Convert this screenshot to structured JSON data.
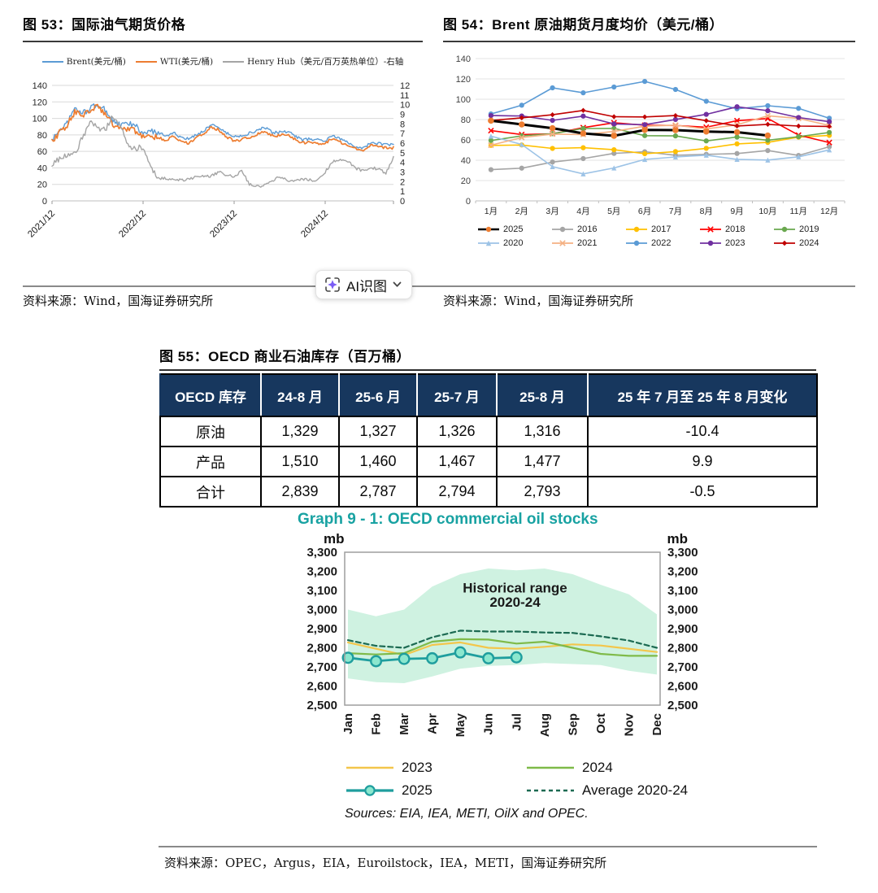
{
  "ai_button": {
    "label": "AI识图"
  },
  "sources": {
    "fig53": "资料来源：Wind，国海证券研究所",
    "fig54": "资料来源：Wind，国海证券研究所",
    "footer": "资料来源：OPEC，Argus，EIA，Euroilstock，IEA，METI，国海证券研究所"
  },
  "chart_data": [
    {
      "id": "intl-oil-gas-futures",
      "type": "line",
      "title": "图 53：国际油气期货价格",
      "x_tick_labels": [
        "2021/12",
        "2022/12",
        "2023/12",
        "2024/12"
      ],
      "x_tick_indices": [
        0,
        12,
        24,
        36
      ],
      "x_note": "monthly samples 2021/12 through 2025/09",
      "left_axis": {
        "min": 0,
        "max": 140,
        "step": 20
      },
      "right_axis": {
        "min": 0,
        "max": 12,
        "step": 1
      },
      "grid": true,
      "series": [
        {
          "name": "Brent(美元/桶)",
          "color": "#5B9BD5",
          "axis": "left",
          "width": 1.4,
          "volatility": 1.7,
          "values": [
            74,
            86,
            94,
            112,
            106,
            112,
            117,
            110,
            98,
            91,
            94,
            91,
            81,
            84,
            83,
            79,
            83,
            76,
            75,
            80,
            85,
            93,
            89,
            82,
            78,
            79,
            82,
            85,
            89,
            83,
            83,
            84,
            79,
            74,
            75,
            74,
            73,
            79,
            75,
            71,
            66,
            64,
            70,
            70,
            68,
            68
          ]
        },
        {
          "name": "WTI(美元/桶)",
          "color": "#ED7D31",
          "axis": "left",
          "width": 1.7,
          "volatility": 1.7,
          "values": [
            71,
            83,
            92,
            108,
            102,
            110,
            114,
            105,
            93,
            87,
            88,
            85,
            77,
            78,
            77,
            73,
            79,
            72,
            70,
            76,
            81,
            89,
            86,
            78,
            72,
            74,
            77,
            81,
            85,
            79,
            79,
            81,
            75,
            70,
            72,
            70,
            70,
            76,
            71,
            68,
            63,
            61,
            67,
            67,
            64,
            64
          ]
        },
        {
          "name": "Henry Hub（美元/百万英热单位）-右轴",
          "color": "#A5A5A5",
          "axis": "right",
          "width": 1.4,
          "volatility": 0.15,
          "values": [
            3.8,
            4.4,
            4.7,
            4.9,
            6.6,
            8.1,
            7.7,
            7.3,
            8.8,
            7.9,
            5.7,
            5.5,
            5.5,
            3.3,
            2.4,
            2.3,
            2.2,
            2.2,
            2.2,
            2.6,
            2.6,
            2.6,
            3.0,
            2.7,
            2.5,
            3.2,
            1.7,
            1.5,
            1.6,
            2.1,
            2.5,
            2.1,
            2.0,
            2.3,
            2.2,
            2.1,
            3.0,
            4.1,
            4.2,
            4.1,
            3.4,
            3.1,
            3.5,
            3.3,
            2.9,
            4.5
          ]
        }
      ]
    },
    {
      "id": "brent-monthly-average",
      "type": "line",
      "title": "图 54：Brent 原油期货月度均价（美元/桶）",
      "categories": [
        "1月",
        "2月",
        "3月",
        "4月",
        "5月",
        "6月",
        "7月",
        "8月",
        "9月",
        "10月",
        "11月",
        "12月"
      ],
      "y_axis": {
        "min": 0,
        "max": 140,
        "step": 20
      },
      "grid": true,
      "legend_position": "bottom",
      "series": [
        {
          "name": "2025",
          "color": "#000000",
          "marker": "circle",
          "marker_color": "#ED7D31",
          "width": 3,
          "values": [
            78.9,
            75.2,
            71.5,
            66.4,
            64.0,
            69.8,
            69.6,
            68.2,
            67.6,
            64.3
          ]
        },
        {
          "name": "2016",
          "color": "#A5A5A5",
          "marker": "circle",
          "width": 1.6,
          "values": [
            30.7,
            32.2,
            38.2,
            41.6,
            46.7,
            48.3,
            44.9,
            45.8,
            46.6,
            49.5,
            44.7,
            53.3
          ]
        },
        {
          "name": "2017",
          "color": "#FFC000",
          "marker": "circle",
          "width": 1.6,
          "values": [
            54.6,
            55.0,
            51.6,
            52.3,
            50.3,
            46.4,
            48.5,
            51.7,
            56.1,
            57.5,
            62.7,
            64.4
          ]
        },
        {
          "name": "2018",
          "color": "#FF0000",
          "marker": "x",
          "width": 1.6,
          "values": [
            69.1,
            65.3,
            66.0,
            72.1,
            76.9,
            74.4,
            74.2,
            72.5,
            78.9,
            81.0,
            64.7,
            57.4
          ]
        },
        {
          "name": "2019",
          "color": "#6AA84F",
          "marker": "circle",
          "width": 1.6,
          "values": [
            59.4,
            64.0,
            66.1,
            71.2,
            71.3,
            64.2,
            63.9,
            59.0,
            62.8,
            59.7,
            63.2,
            67.3
          ]
        },
        {
          "name": "2020",
          "color": "#9DC3E6",
          "marker": "triangle",
          "width": 1.6,
          "values": [
            63.7,
            55.5,
            33.7,
            26.6,
            32.4,
            40.8,
            43.2,
            45.0,
            40.9,
            40.2,
            43.4,
            50.2
          ]
        },
        {
          "name": "2021",
          "color": "#F4B183",
          "marker": "x",
          "width": 1.6,
          "values": [
            54.8,
            62.3,
            65.7,
            65.3,
            68.3,
            73.4,
            74.5,
            70.8,
            74.9,
            83.7,
            81.1,
            74.2
          ]
        },
        {
          "name": "2022",
          "color": "#5B9BD5",
          "marker": "circle",
          "width": 1.6,
          "values": [
            85.5,
            94.1,
            111.2,
            106.3,
            112.0,
            117.5,
            109.6,
            98.0,
            90.6,
            93.6,
            91.0,
            81.3
          ]
        },
        {
          "name": "2023",
          "color": "#7030A0",
          "marker": "circle",
          "width": 1.6,
          "values": [
            83.9,
            83.5,
            79.2,
            83.4,
            75.7,
            75.0,
            80.1,
            85.1,
            92.6,
            88.7,
            82.0,
            77.9
          ]
        },
        {
          "name": "2024",
          "color": "#C00000",
          "marker": "diamond",
          "width": 1.6,
          "values": [
            79.1,
            81.7,
            84.7,
            89.0,
            82.8,
            82.6,
            83.9,
            78.9,
            73.7,
            75.3,
            73.6,
            73.2
          ]
        }
      ]
    },
    {
      "id": "oecd-commercial-oil-stocks",
      "type": "line",
      "title": "Graph 9 - 1: OECD commercial oil stocks",
      "unit": "mb",
      "categories": [
        "Jan",
        "Feb",
        "Mar",
        "Apr",
        "May",
        "Jun",
        "Jul",
        "Aug",
        "Sep",
        "Oct",
        "Nov",
        "Dec"
      ],
      "y_axis": {
        "min": 2500,
        "max": 3300,
        "step": 100
      },
      "annotation": [
        "Historical range",
        "2020-24"
      ],
      "band": {
        "name": "Historical range 2020-24",
        "color": "#CFF2E1",
        "upper": [
          3000,
          2965,
          3000,
          3120,
          3185,
          3215,
          3205,
          3215,
          3185,
          3130,
          3080,
          2975
        ],
        "lower": [
          2640,
          2620,
          2615,
          2650,
          2690,
          2705,
          2710,
          2720,
          2715,
          2710,
          2680,
          2660
        ]
      },
      "series": [
        {
          "name": "2023",
          "color": "#F3C64B",
          "style": "solid",
          "width": 2.2,
          "values": [
            2828,
            2795,
            2762,
            2815,
            2828,
            2800,
            2795,
            2805,
            2818,
            2812,
            2795,
            2778
          ]
        },
        {
          "name": "2024",
          "color": "#7FBA49",
          "style": "solid",
          "width": 2.2,
          "values": [
            2772,
            2765,
            2772,
            2832,
            2845,
            2843,
            2822,
            2832,
            2800,
            2768,
            2758,
            2758
          ]
        },
        {
          "name": "Average 2020-24",
          "color": "#1C6A52",
          "style": "dashed",
          "width": 2.2,
          "values": [
            2840,
            2810,
            2800,
            2855,
            2890,
            2885,
            2885,
            2880,
            2878,
            2860,
            2838,
            2800
          ]
        },
        {
          "name": "2025",
          "color": "#1F9E9E",
          "style": "solid",
          "width": 2.8,
          "marker": "circle",
          "marker_fill": "#8BE7CE",
          "values": [
            2748,
            2730,
            2742,
            2745,
            2776,
            2745,
            2750
          ]
        }
      ],
      "legend_order": [
        "2023",
        "2024",
        "2025",
        "Average 2020-24"
      ],
      "sources": "Sources: EIA, IEA, METI, OilX and OPEC."
    },
    {
      "id": "oecd-oil-stocks-table",
      "type": "table",
      "title": "图 55：OECD 商业石油库存（百万桶）",
      "headers": [
        "OECD 库存",
        "24-8 月",
        "25-6 月",
        "25-7 月",
        "25-8 月",
        "25 年 7 月至 25 年 8 月变化"
      ],
      "rows": [
        [
          "原油",
          "1,329",
          "1,327",
          "1,326",
          "1,316",
          "-10.4"
        ],
        [
          "产品",
          "1,510",
          "1,460",
          "1,467",
          "1,477",
          "9.9"
        ],
        [
          "合计",
          "2,839",
          "2,787",
          "2,794",
          "2,793",
          "-0.5"
        ]
      ]
    }
  ]
}
